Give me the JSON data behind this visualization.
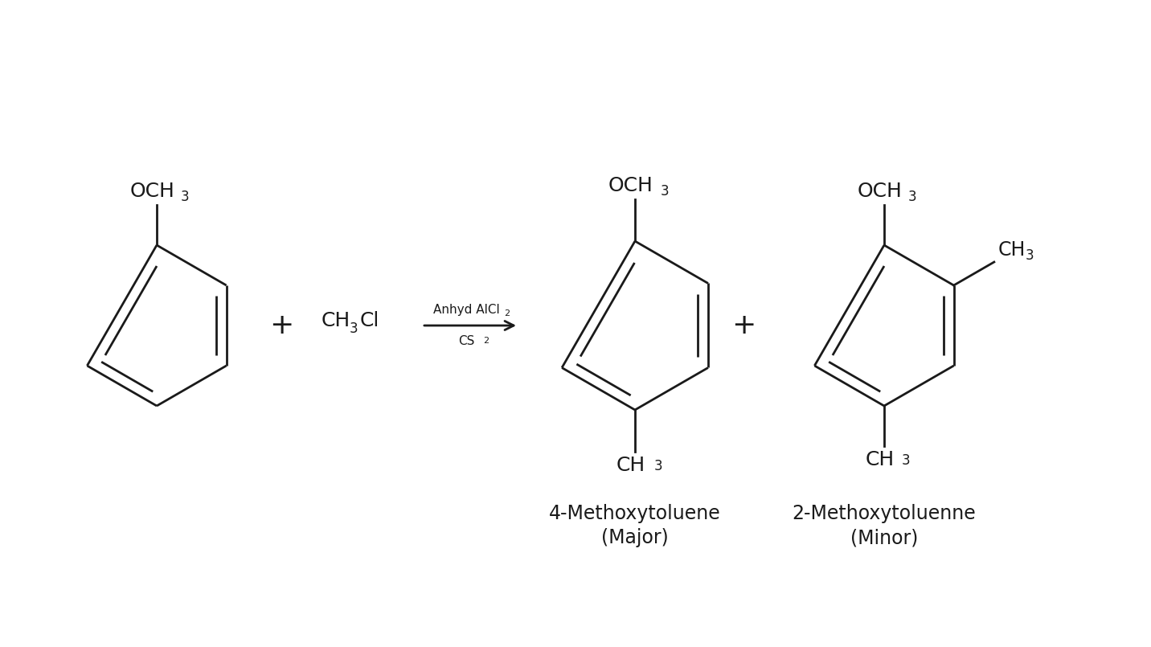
{
  "bg_color": "#ffffff",
  "line_color": "#1a1a1a",
  "lw": 2.0,
  "figsize": [
    14.32,
    8.05
  ],
  "dpi": 100,
  "xlim": [
    0,
    1432
  ],
  "ylim": [
    0,
    805
  ]
}
